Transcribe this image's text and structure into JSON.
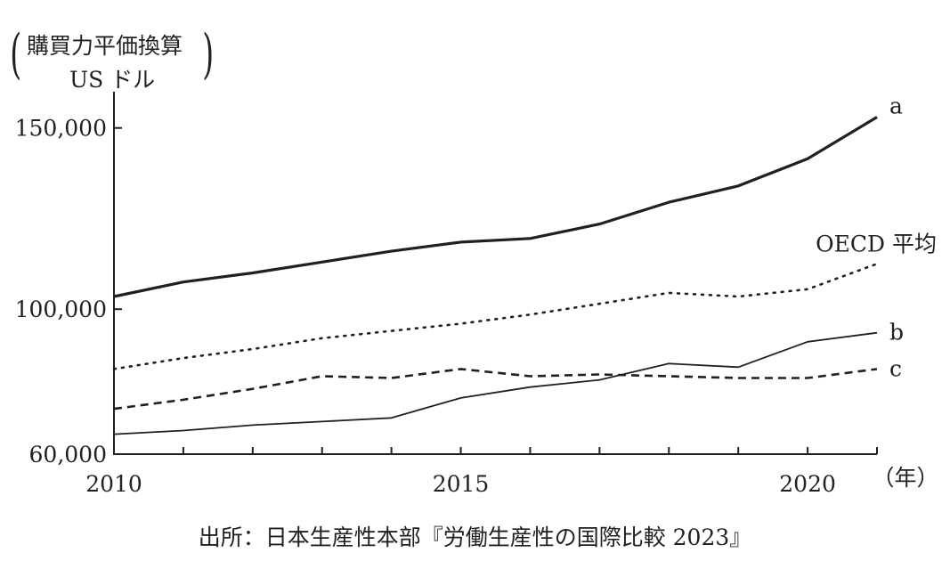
{
  "chart_data": {
    "type": "line",
    "ylabel": [
      "購買力平価換算",
      "US ドル"
    ],
    "xlabel": "（年）",
    "source": "出所：日本生産性本部『労働生産性の国際比較 2023』",
    "x": [
      2010,
      2011,
      2012,
      2013,
      2014,
      2015,
      2016,
      2017,
      2018,
      2019,
      2020,
      2021
    ],
    "xticks": [
      "2010",
      "2015",
      "2020"
    ],
    "yticks": [
      "60,000",
      "100,000",
      "150,000"
    ],
    "ylim": [
      60000,
      150000
    ],
    "ylim_display_top": 160000,
    "series": [
      {
        "name": "a",
        "style": "solid-thick",
        "values": [
          103500,
          107500,
          110000,
          113000,
          116000,
          118500,
          119500,
          123500,
          129500,
          134000,
          141500,
          153000
        ]
      },
      {
        "name": "OECD 平均",
        "style": "dotted",
        "values": [
          83500,
          86500,
          89000,
          92000,
          94000,
          96000,
          98500,
          101500,
          104500,
          103500,
          105500,
          112500
        ]
      },
      {
        "name": "b",
        "style": "solid-thin",
        "values": [
          65500,
          66500,
          68000,
          69000,
          70000,
          75500,
          78500,
          80500,
          85000,
          84000,
          91000,
          93500
        ]
      },
      {
        "name": "c",
        "style": "dashed",
        "values": [
          72500,
          75000,
          78000,
          81500,
          81000,
          83500,
          81500,
          82000,
          81500,
          81000,
          81000,
          83500
        ]
      }
    ]
  }
}
